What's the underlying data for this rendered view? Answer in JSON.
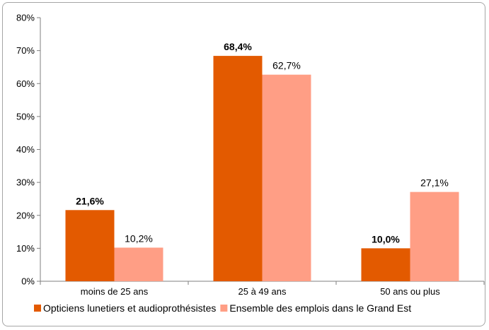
{
  "chart_data": {
    "type": "bar",
    "categories": [
      "moins de 25 ans",
      "25 à 49 ans",
      "50 ans ou plus"
    ],
    "series": [
      {
        "name": "Opticiens lunetiers et audioprothésistes",
        "values": [
          21.6,
          68.4,
          10.0
        ],
        "labels": [
          "21,6%",
          "68,4%",
          "10,0%"
        ],
        "color": "#e35a00",
        "label_bold": true
      },
      {
        "name": "Ensemble des emplois dans le Grand Est",
        "values": [
          10.2,
          62.7,
          27.1
        ],
        "labels": [
          "10,2%",
          "62,7%",
          "27,1%"
        ],
        "color": "#ff9e85",
        "label_bold": false
      }
    ],
    "ylim": [
      0,
      80
    ],
    "yticks": [
      0,
      10,
      20,
      30,
      40,
      50,
      60,
      70,
      80
    ],
    "ytick_labels": [
      "0%",
      "10%",
      "20%",
      "30%",
      "40%",
      "50%",
      "60%",
      "70%",
      "80%"
    ],
    "grid": false,
    "legend_position": "bottom",
    "title": "",
    "xlabel": "",
    "ylabel": ""
  }
}
